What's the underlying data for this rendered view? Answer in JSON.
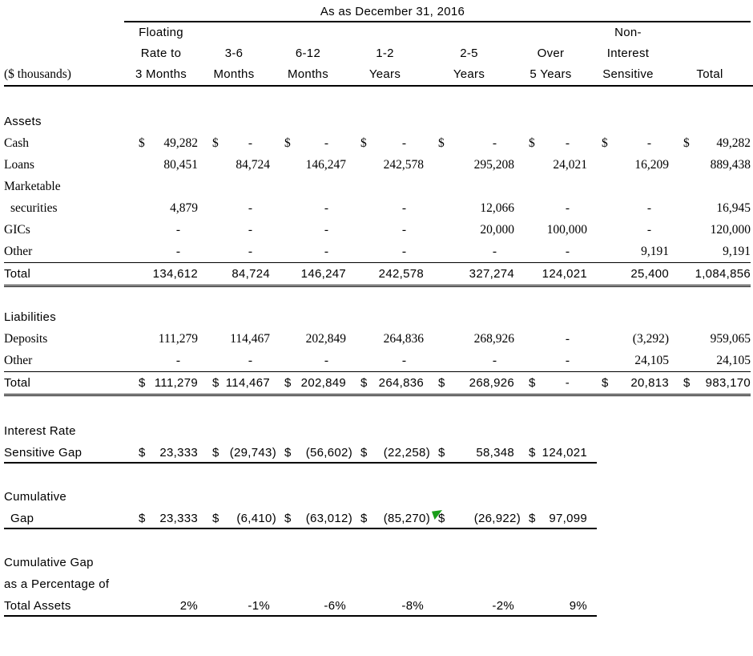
{
  "title": "As as December 31, 2016",
  "corner_label": "($ thousands)",
  "columns": [
    {
      "l1": "Floating",
      "l2": "Rate to",
      "l3": "3 Months"
    },
    {
      "l2": "3-6",
      "l3": "Months"
    },
    {
      "l2": "6-12",
      "l3": "Months"
    },
    {
      "l2": "1-2",
      "l3": "Years"
    },
    {
      "l2": "2-5",
      "l3": "Years"
    },
    {
      "l2": "Over",
      "l3": "5 Years"
    },
    {
      "l1": "Non-",
      "l2": "Interest",
      "l3": "Sensitive"
    },
    {
      "l3": "Total"
    }
  ],
  "assets": {
    "heading": "Assets",
    "rows": [
      {
        "label": "Cash",
        "cells": [
          {
            "cur": "$",
            "val": "49,282"
          },
          {
            "cur": "$",
            "val": "-"
          },
          {
            "cur": "$",
            "val": "-"
          },
          {
            "cur": "$",
            "val": "-"
          },
          {
            "cur": "$",
            "val": "-"
          },
          {
            "cur": "$",
            "val": "-"
          },
          {
            "cur": "$",
            "val": "-"
          },
          {
            "cur": "$",
            "val": "49,282"
          }
        ]
      },
      {
        "label": "Loans",
        "cells": [
          {
            "val": "80,451"
          },
          {
            "val": "84,724"
          },
          {
            "val": "146,247"
          },
          {
            "val": "242,578"
          },
          {
            "val": "295,208"
          },
          {
            "val": "24,021"
          },
          {
            "val": "16,209"
          },
          {
            "val": "889,438"
          }
        ]
      },
      {
        "label": "Marketable",
        "cells": []
      },
      {
        "label": "securities",
        "cells": [
          {
            "val": "4,879"
          },
          {
            "val": "-"
          },
          {
            "val": "-"
          },
          {
            "val": "-"
          },
          {
            "val": "12,066"
          },
          {
            "val": "-"
          },
          {
            "val": "-"
          },
          {
            "val": "16,945"
          }
        ]
      },
      {
        "label": "GICs",
        "cells": [
          {
            "val": "-"
          },
          {
            "val": "-"
          },
          {
            "val": "-"
          },
          {
            "val": "-"
          },
          {
            "val": "20,000"
          },
          {
            "val": "100,000"
          },
          {
            "val": "-"
          },
          {
            "val": "120,000"
          }
        ]
      },
      {
        "label": "Other",
        "cells": [
          {
            "val": "-"
          },
          {
            "val": "-"
          },
          {
            "val": "-"
          },
          {
            "val": "-"
          },
          {
            "val": "-"
          },
          {
            "val": "-"
          },
          {
            "val": "9,191"
          },
          {
            "val": "9,191"
          }
        ]
      }
    ],
    "total": {
      "label": "Total",
      "cells": [
        {
          "val": "134,612"
        },
        {
          "val": "84,724"
        },
        {
          "val": "146,247"
        },
        {
          "val": "242,578"
        },
        {
          "val": "327,274"
        },
        {
          "val": "124,021"
        },
        {
          "val": "25,400"
        },
        {
          "val": "1,084,856"
        }
      ]
    }
  },
  "liabilities": {
    "heading": "Liabilities",
    "rows": [
      {
        "label": "Deposits",
        "cells": [
          {
            "val": "111,279"
          },
          {
            "val": "114,467"
          },
          {
            "val": "202,849"
          },
          {
            "val": "264,836"
          },
          {
            "val": "268,926"
          },
          {
            "val": "-"
          },
          {
            "val": "(3,292)"
          },
          {
            "val": "959,065"
          }
        ]
      },
      {
        "label": "Other",
        "cells": [
          {
            "val": "-"
          },
          {
            "val": "-"
          },
          {
            "val": "-"
          },
          {
            "val": "-"
          },
          {
            "val": "-"
          },
          {
            "val": "-"
          },
          {
            "val": "24,105"
          },
          {
            "val": "24,105"
          }
        ]
      }
    ],
    "total": {
      "label": "Total",
      "cells": [
        {
          "cur": "$",
          "val": "111,279"
        },
        {
          "cur": "$",
          "val": "114,467"
        },
        {
          "cur": "$",
          "val": "202,849"
        },
        {
          "cur": "$",
          "val": "264,836"
        },
        {
          "cur": "$",
          "val": "268,926"
        },
        {
          "cur": "$",
          "val": "-"
        },
        {
          "cur": "$",
          "val": "20,813"
        },
        {
          "cur": "$",
          "val": "983,170"
        }
      ]
    }
  },
  "gap": {
    "label_line1": "Interest Rate",
    "label_line2": "Sensitive Gap",
    "cells": [
      {
        "cur": "$",
        "val": "23,333"
      },
      {
        "cur": "$",
        "val": "(29,743)"
      },
      {
        "cur": "$",
        "val": "(56,602)"
      },
      {
        "cur": "$",
        "val": "(22,258)"
      },
      {
        "cur": "$",
        "val": "58,348"
      },
      {
        "cur": "$",
        "val": "124,021"
      }
    ]
  },
  "cumulative_gap": {
    "label_line1": "Cumulative",
    "label_line2": "Gap",
    "cells": [
      {
        "cur": "$",
        "val": "23,333"
      },
      {
        "cur": "$",
        "val": "(6,410)"
      },
      {
        "cur": "$",
        "val": "(63,012)"
      },
      {
        "cur": "$",
        "val": "(85,270)"
      },
      {
        "cur": "$",
        "val": "(26,922)"
      },
      {
        "cur": "$",
        "val": "97,099"
      }
    ]
  },
  "cumulative_pct": {
    "label_line1": "Cumulative Gap",
    "label_line2": "as a Percentage of",
    "label_line3": "Total Assets",
    "cells": [
      {
        "val": "2%"
      },
      {
        "val": "-1%"
      },
      {
        "val": "-6%"
      },
      {
        "val": "-8%"
      },
      {
        "val": "-2%"
      },
      {
        "val": "9%"
      }
    ]
  },
  "marker": {
    "description": "green-comment-flag",
    "color": "#1a9e1a",
    "style": "background:#1a9e1a"
  }
}
